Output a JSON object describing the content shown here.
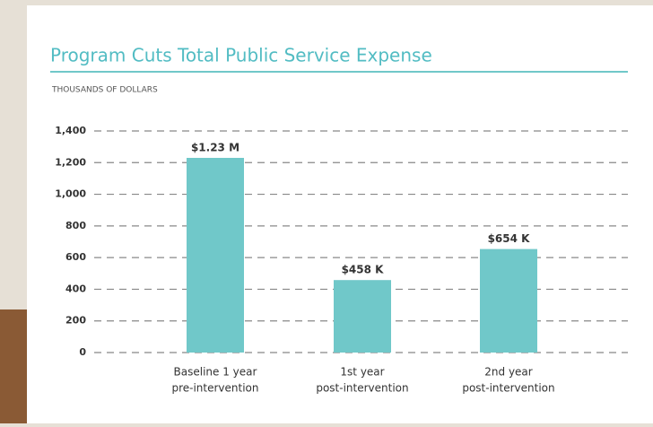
{
  "chart_data": {
    "type": "bar",
    "title": "Program Cuts Total Public Service Expense",
    "subtitle": "THOUSANDS OF DOLLARS",
    "categories": [
      [
        "Baseline 1 year",
        "pre-intervention"
      ],
      [
        "1st year",
        "post-intervention"
      ],
      [
        "2nd year",
        "post-intervention"
      ]
    ],
    "values": [
      1230,
      458,
      654
    ],
    "value_labels": [
      "$1.23 M",
      "$458 K",
      "$654 K"
    ],
    "color": "#70c8c9",
    "ylim": [
      0,
      1400
    ],
    "yticks": [
      0,
      200,
      400,
      600,
      800,
      {
        "value": 1000,
        "label": "1,000"
      },
      {
        "value": 1200,
        "label": "1,200"
      },
      {
        "value": 1400,
        "label": "1,400"
      }
    ],
    "grid": true
  }
}
